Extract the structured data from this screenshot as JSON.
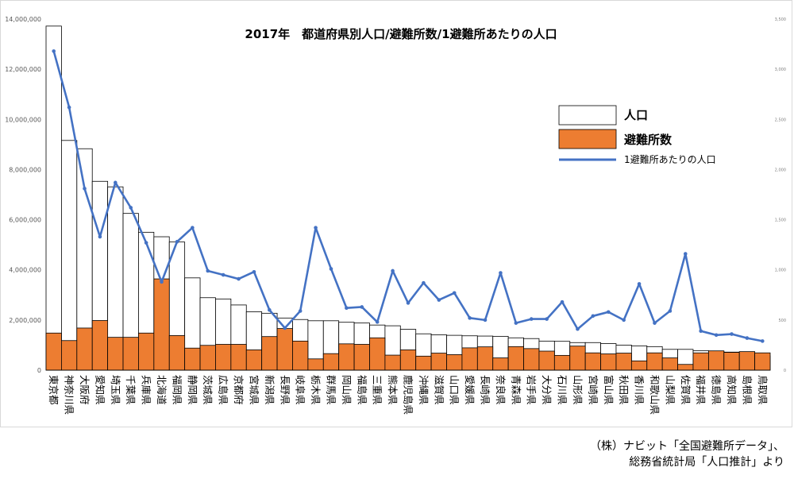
{
  "chart_data": {
    "type": "bar",
    "title": "2017年　都道府県別人口/避難所数/1避難所あたりの人口",
    "categories": [
      "東京都",
      "神奈川県",
      "大阪府",
      "愛知県",
      "埼玉県",
      "千葉県",
      "兵庫県",
      "北海道",
      "福岡県",
      "静岡県",
      "茨城県",
      "広島県",
      "京都府",
      "宮城県",
      "新潟県",
      "長野県",
      "岐阜県",
      "栃木県",
      "群馬県",
      "岡山県",
      "福島県",
      "三重県",
      "熊本県",
      "鹿児島県",
      "沖縄県",
      "滋賀県",
      "山口県",
      "愛媛県",
      "長崎県",
      "奈良県",
      "青森県",
      "岩手県",
      "大分県",
      "石川県",
      "山形県",
      "宮崎県",
      "富山県",
      "秋田県",
      "香川県",
      "和歌山県",
      "山梨県",
      "佐賀県",
      "福井県",
      "徳島県",
      "高知県",
      "島根県",
      "鳥取県"
    ],
    "series": [
      {
        "name": "人口",
        "kind": "bar",
        "axis": "left",
        "color": "#ffffff",
        "values": [
          13720000,
          9160000,
          8830000,
          7530000,
          7310000,
          6250000,
          5500000,
          5320000,
          5110000,
          3680000,
          2890000,
          2840000,
          2600000,
          2330000,
          2270000,
          2080000,
          2020000,
          1970000,
          1970000,
          1910000,
          1880000,
          1800000,
          1770000,
          1630000,
          1450000,
          1410000,
          1390000,
          1370000,
          1360000,
          1350000,
          1290000,
          1260000,
          1160000,
          1150000,
          1100000,
          1100000,
          1060000,
          1000000,
          970000,
          940000,
          830000,
          830000,
          780000,
          750000,
          720000,
          690000,
          570000
        ]
      },
      {
        "name": "避難所数",
        "kind": "bar",
        "axis": "left",
        "color": "#ed7d31",
        "values": [
          1480000,
          1180000,
          1680000,
          1980000,
          1310000,
          1310000,
          1480000,
          3640000,
          1380000,
          880000,
          990000,
          1030000,
          1030000,
          810000,
          1340000,
          1660000,
          1160000,
          450000,
          660000,
          1050000,
          1030000,
          1290000,
          600000,
          810000,
          560000,
          680000,
          620000,
          890000,
          930000,
          490000,
          940000,
          860000,
          760000,
          590000,
          960000,
          690000,
          650000,
          680000,
          370000,
          690000,
          490000,
          230000,
          690000,
          770000,
          710000,
          740000,
          690000
        ]
      },
      {
        "name": "1避難所あたりの人口",
        "kind": "line",
        "axis": "right",
        "color": "#4472c4",
        "values": [
          3180,
          2620,
          1810,
          1330,
          1870,
          1620,
          1270,
          880,
          1280,
          1420,
          990,
          950,
          910,
          980,
          600,
          420,
          590,
          1420,
          1010,
          620,
          630,
          480,
          990,
          670,
          870,
          700,
          770,
          520,
          500,
          970,
          470,
          510,
          510,
          680,
          410,
          540,
          580,
          500,
          860,
          470,
          590,
          1160,
          390,
          350,
          360,
          320,
          290
        ]
      }
    ],
    "y_left": {
      "min": 0,
      "max": 14000000,
      "step": 2000000,
      "ticks": [
        "0",
        "2,000,000",
        "4,000,000",
        "6,000,000",
        "8,000,000",
        "10,000,000",
        "12,000,000",
        "14,000,000"
      ]
    },
    "y_right": {
      "min": 0,
      "max": 3500,
      "step": 500,
      "ticks": [
        "0",
        "500",
        "1,000",
        "1,500",
        "2,000",
        "2,500",
        "3,000",
        "3,500"
      ]
    },
    "grid": false,
    "legend_position": "top-right"
  },
  "legend": {
    "items": [
      "人口",
      "避難所数",
      "1避難所あたりの人口"
    ]
  },
  "source": {
    "line1": "（株）ナビット「全国避難所データ」、",
    "line2": "総務省統計局「人口推計」より"
  }
}
